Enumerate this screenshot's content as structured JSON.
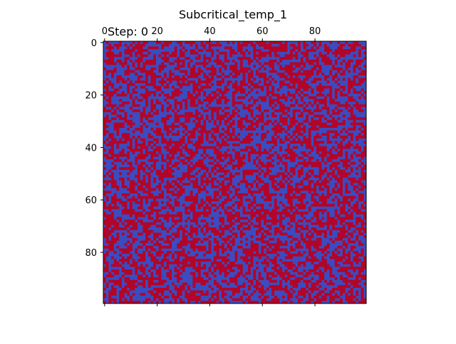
{
  "chart_data": {
    "type": "heatmap",
    "title": "Subcritical_temp_1",
    "annotation": "Step: 0",
    "grid_size": [
      100,
      100
    ],
    "x_ticks_top": [
      "0",
      "20",
      "40",
      "60",
      "80"
    ],
    "y_ticks_left": [
      "0",
      "20",
      "40",
      "60",
      "80"
    ],
    "value_states": [
      -1,
      1
    ],
    "colors": {
      "-1": "#3b4cc0",
      "1": "#b40426"
    },
    "initial_state": "random spins, roughly 50% each",
    "grid": false
  }
}
